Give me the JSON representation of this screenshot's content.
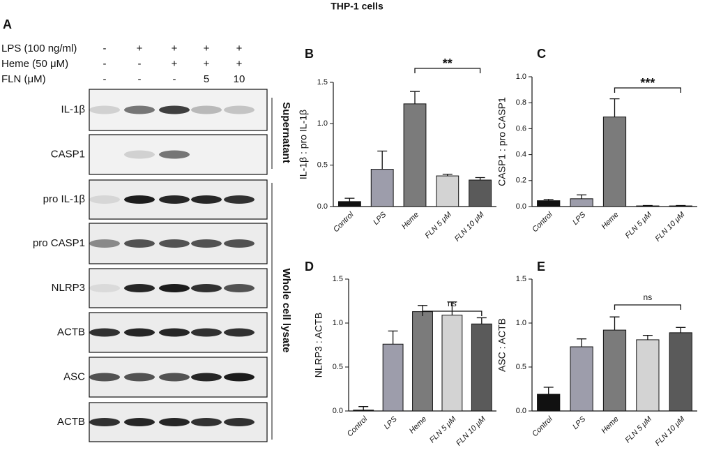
{
  "title": "THP-1 cells",
  "blot": {
    "panel": "A",
    "conditions": [
      {
        "label": "LPS (100 ng/ml)",
        "cells": [
          "-",
          "+",
          "+",
          "+",
          "+"
        ]
      },
      {
        "label": "Heme (50 μM)",
        "cells": [
          "-",
          "-",
          "+",
          "+",
          "+"
        ]
      },
      {
        "label": "FLN (μM)",
        "cells": [
          "-",
          "-",
          "-",
          "5",
          "10"
        ]
      }
    ],
    "rows": [
      "IL-1β",
      "CASP1",
      "pro  IL-1β",
      "pro CASP1",
      "NLRP3",
      "ACTB",
      "ASC",
      "ACTB"
    ],
    "groups": [
      "Supernatant",
      "Whole cell lysate"
    ]
  },
  "chart_data": [
    {
      "type": "bar",
      "panel": "B",
      "y_label": "IL-1β : pro IL-1β",
      "categories": [
        "Control",
        "LPS",
        "Heme",
        "FLN 5 μM",
        "FLN 10 μM"
      ],
      "values": [
        0.06,
        0.45,
        1.24,
        0.37,
        0.32
      ],
      "errors": [
        0.04,
        0.22,
        0.15,
        0.02,
        0.03
      ],
      "colors": [
        "#111111",
        "#9d9dab",
        "#7b7b7b",
        "#d3d3d3",
        "#5a5a5a"
      ],
      "ylim": [
        0,
        1.5
      ],
      "yticks": [
        {
          "value": 0,
          "label": "0.0"
        },
        0.5,
        {
          "value": 1,
          "label": "1.0"
        },
        1.5
      ],
      "significance": "**"
    },
    {
      "type": "bar",
      "panel": "C",
      "y_label": "CASP1 : pro CASP1",
      "categories": [
        "Control",
        "LPS",
        "Heme",
        "FLN 5 μM",
        "FLN 10 μM"
      ],
      "values": [
        0.045,
        0.06,
        0.69,
        0.005,
        0.005
      ],
      "errors": [
        0.01,
        0.03,
        0.14,
        0.003,
        0.003
      ],
      "colors": [
        "#111111",
        "#9d9dab",
        "#7b7b7b",
        "#d3d3d3",
        "#5a5a5a"
      ],
      "ylim": [
        0,
        1
      ],
      "yticks": [
        {
          "value": 0,
          "label": "0.0"
        },
        0.2,
        0.4,
        0.6,
        0.8,
        {
          "value": 1,
          "label": "1.0"
        }
      ],
      "significance": "***"
    },
    {
      "type": "bar",
      "panel": "D",
      "y_label": "NLRP3 : ACTB",
      "categories": [
        "Control",
        "LPS",
        "Heme",
        "FLN 5 μM",
        "FLN 10 μM"
      ],
      "values": [
        0.01,
        0.76,
        1.13,
        1.09,
        0.99
      ],
      "errors": [
        0.04,
        0.15,
        0.07,
        0.15,
        0.07
      ],
      "colors": [
        "#111111",
        "#9d9dab",
        "#7b7b7b",
        "#d3d3d3",
        "#5a5a5a"
      ],
      "ylim": [
        0,
        1.5
      ],
      "yticks": [
        {
          "value": 0,
          "label": "0.0"
        },
        0.5,
        {
          "value": 1,
          "label": "1.0"
        },
        1.5
      ],
      "significance": "ns"
    },
    {
      "type": "bar",
      "panel": "E",
      "y_label": "ASC : ACTB",
      "categories": [
        "Control",
        "LPS",
        "Heme",
        "FLN 5 μM",
        "FLN 10 μM"
      ],
      "values": [
        0.19,
        0.73,
        0.92,
        0.81,
        0.89
      ],
      "errors": [
        0.08,
        0.09,
        0.15,
        0.05,
        0.06
      ],
      "colors": [
        "#111111",
        "#9d9dab",
        "#7b7b7b",
        "#d3d3d3",
        "#5a5a5a"
      ],
      "ylim": [
        0,
        1.5
      ],
      "yticks": [
        {
          "value": 0,
          "label": "0.0"
        },
        0.5,
        {
          "value": 1,
          "label": "1.0"
        },
        1.5
      ],
      "significance": "ns"
    }
  ]
}
